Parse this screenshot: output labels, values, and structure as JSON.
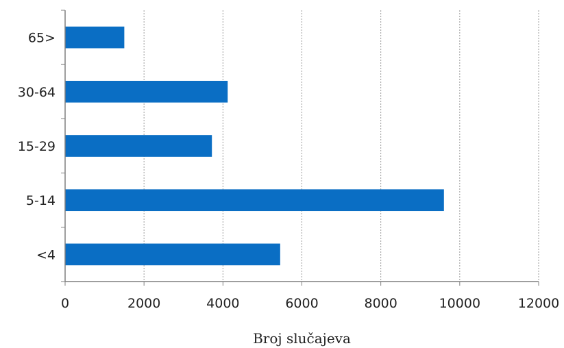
{
  "chart_data": {
    "type": "bar",
    "orientation": "horizontal",
    "categories": [
      "<4",
      "5-14",
      "15-29",
      "30-64",
      "65>"
    ],
    "values": [
      5450,
      9600,
      3720,
      4120,
      1500
    ],
    "title": "",
    "xlabel": "Broj slučajeva",
    "ylabel": "",
    "xlim": [
      0,
      12000
    ],
    "xticks": [
      "0",
      "2000",
      "4000",
      "6000",
      "8000",
      "10000",
      "12000"
    ],
    "grid": "vertical dotted",
    "bar_color": "#0a6ec4",
    "grid_color": "#9a9a9a",
    "axis_color": "#7f7f7f"
  }
}
